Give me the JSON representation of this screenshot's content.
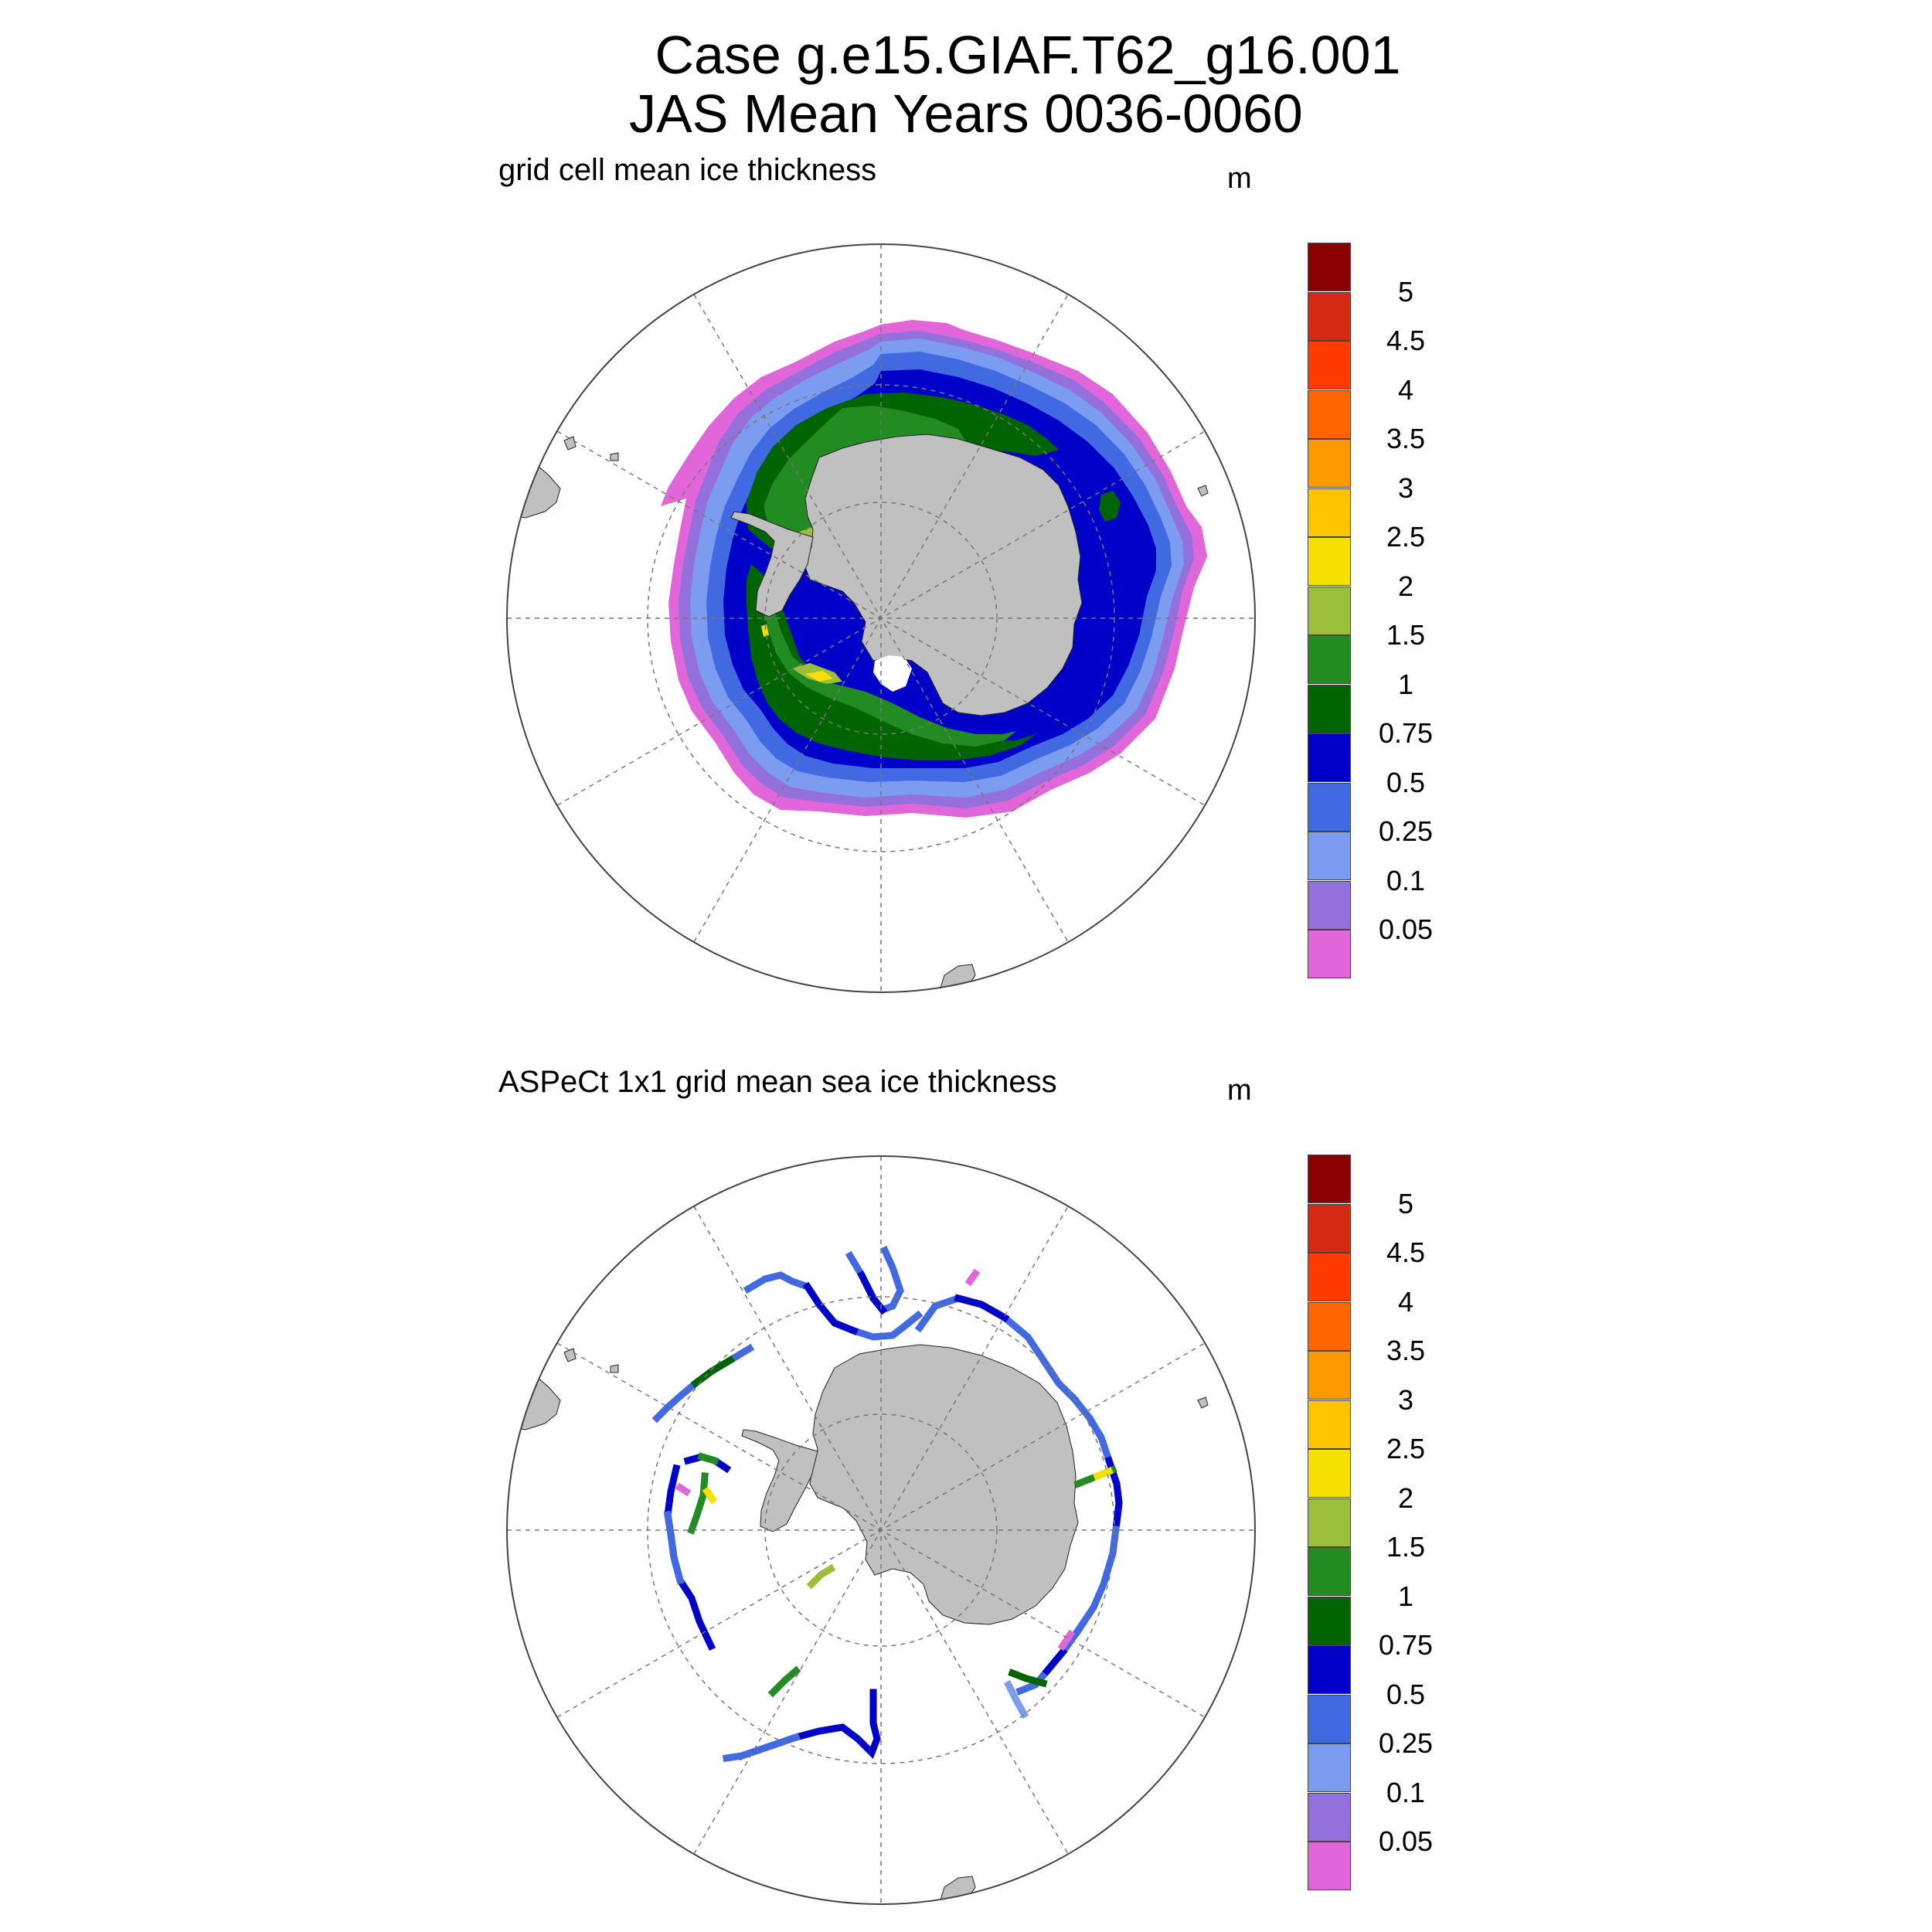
{
  "header": {
    "title_line1": "Case g.e15.GIAF.T62_g16.001",
    "title_line2": "JAS Mean   Years 0036-0060"
  },
  "panels": [
    {
      "title": "grid cell mean ice thickness",
      "units": "m"
    },
    {
      "title": "ASPeCt 1x1 grid mean sea ice thickness",
      "units": "m"
    }
  ],
  "colorbar": {
    "labels": [
      "5",
      "4.5",
      "4",
      "3.5",
      "3",
      "2.5",
      "2",
      "1.5",
      "1",
      "0.75",
      "0.5",
      "0.25",
      "0.1",
      "0.05"
    ],
    "colors_top_to_bottom": [
      "#8b0000",
      "#d42a14",
      "#ff3b00",
      "#ff6600",
      "#ff9900",
      "#ffc400",
      "#f5e000",
      "#9bbf3a",
      "#228b22",
      "#006400",
      "#0000c8",
      "#4169e1",
      "#7b9cf0",
      "#9370db",
      "#e066d9"
    ]
  },
  "map_colors": {
    "land": "#c0c0c0",
    "ice_0_05": "#e066d9",
    "ice_0_1": "#9370db",
    "ice_0_25": "#7b9cf0",
    "ice_0_5": "#4169e1",
    "ice_0_75": "#0000c8",
    "ice_1": "#006400",
    "ice_1_5": "#228b22",
    "ice_2": "#9bbf3a",
    "ice_2_5": "#f5e000"
  }
}
